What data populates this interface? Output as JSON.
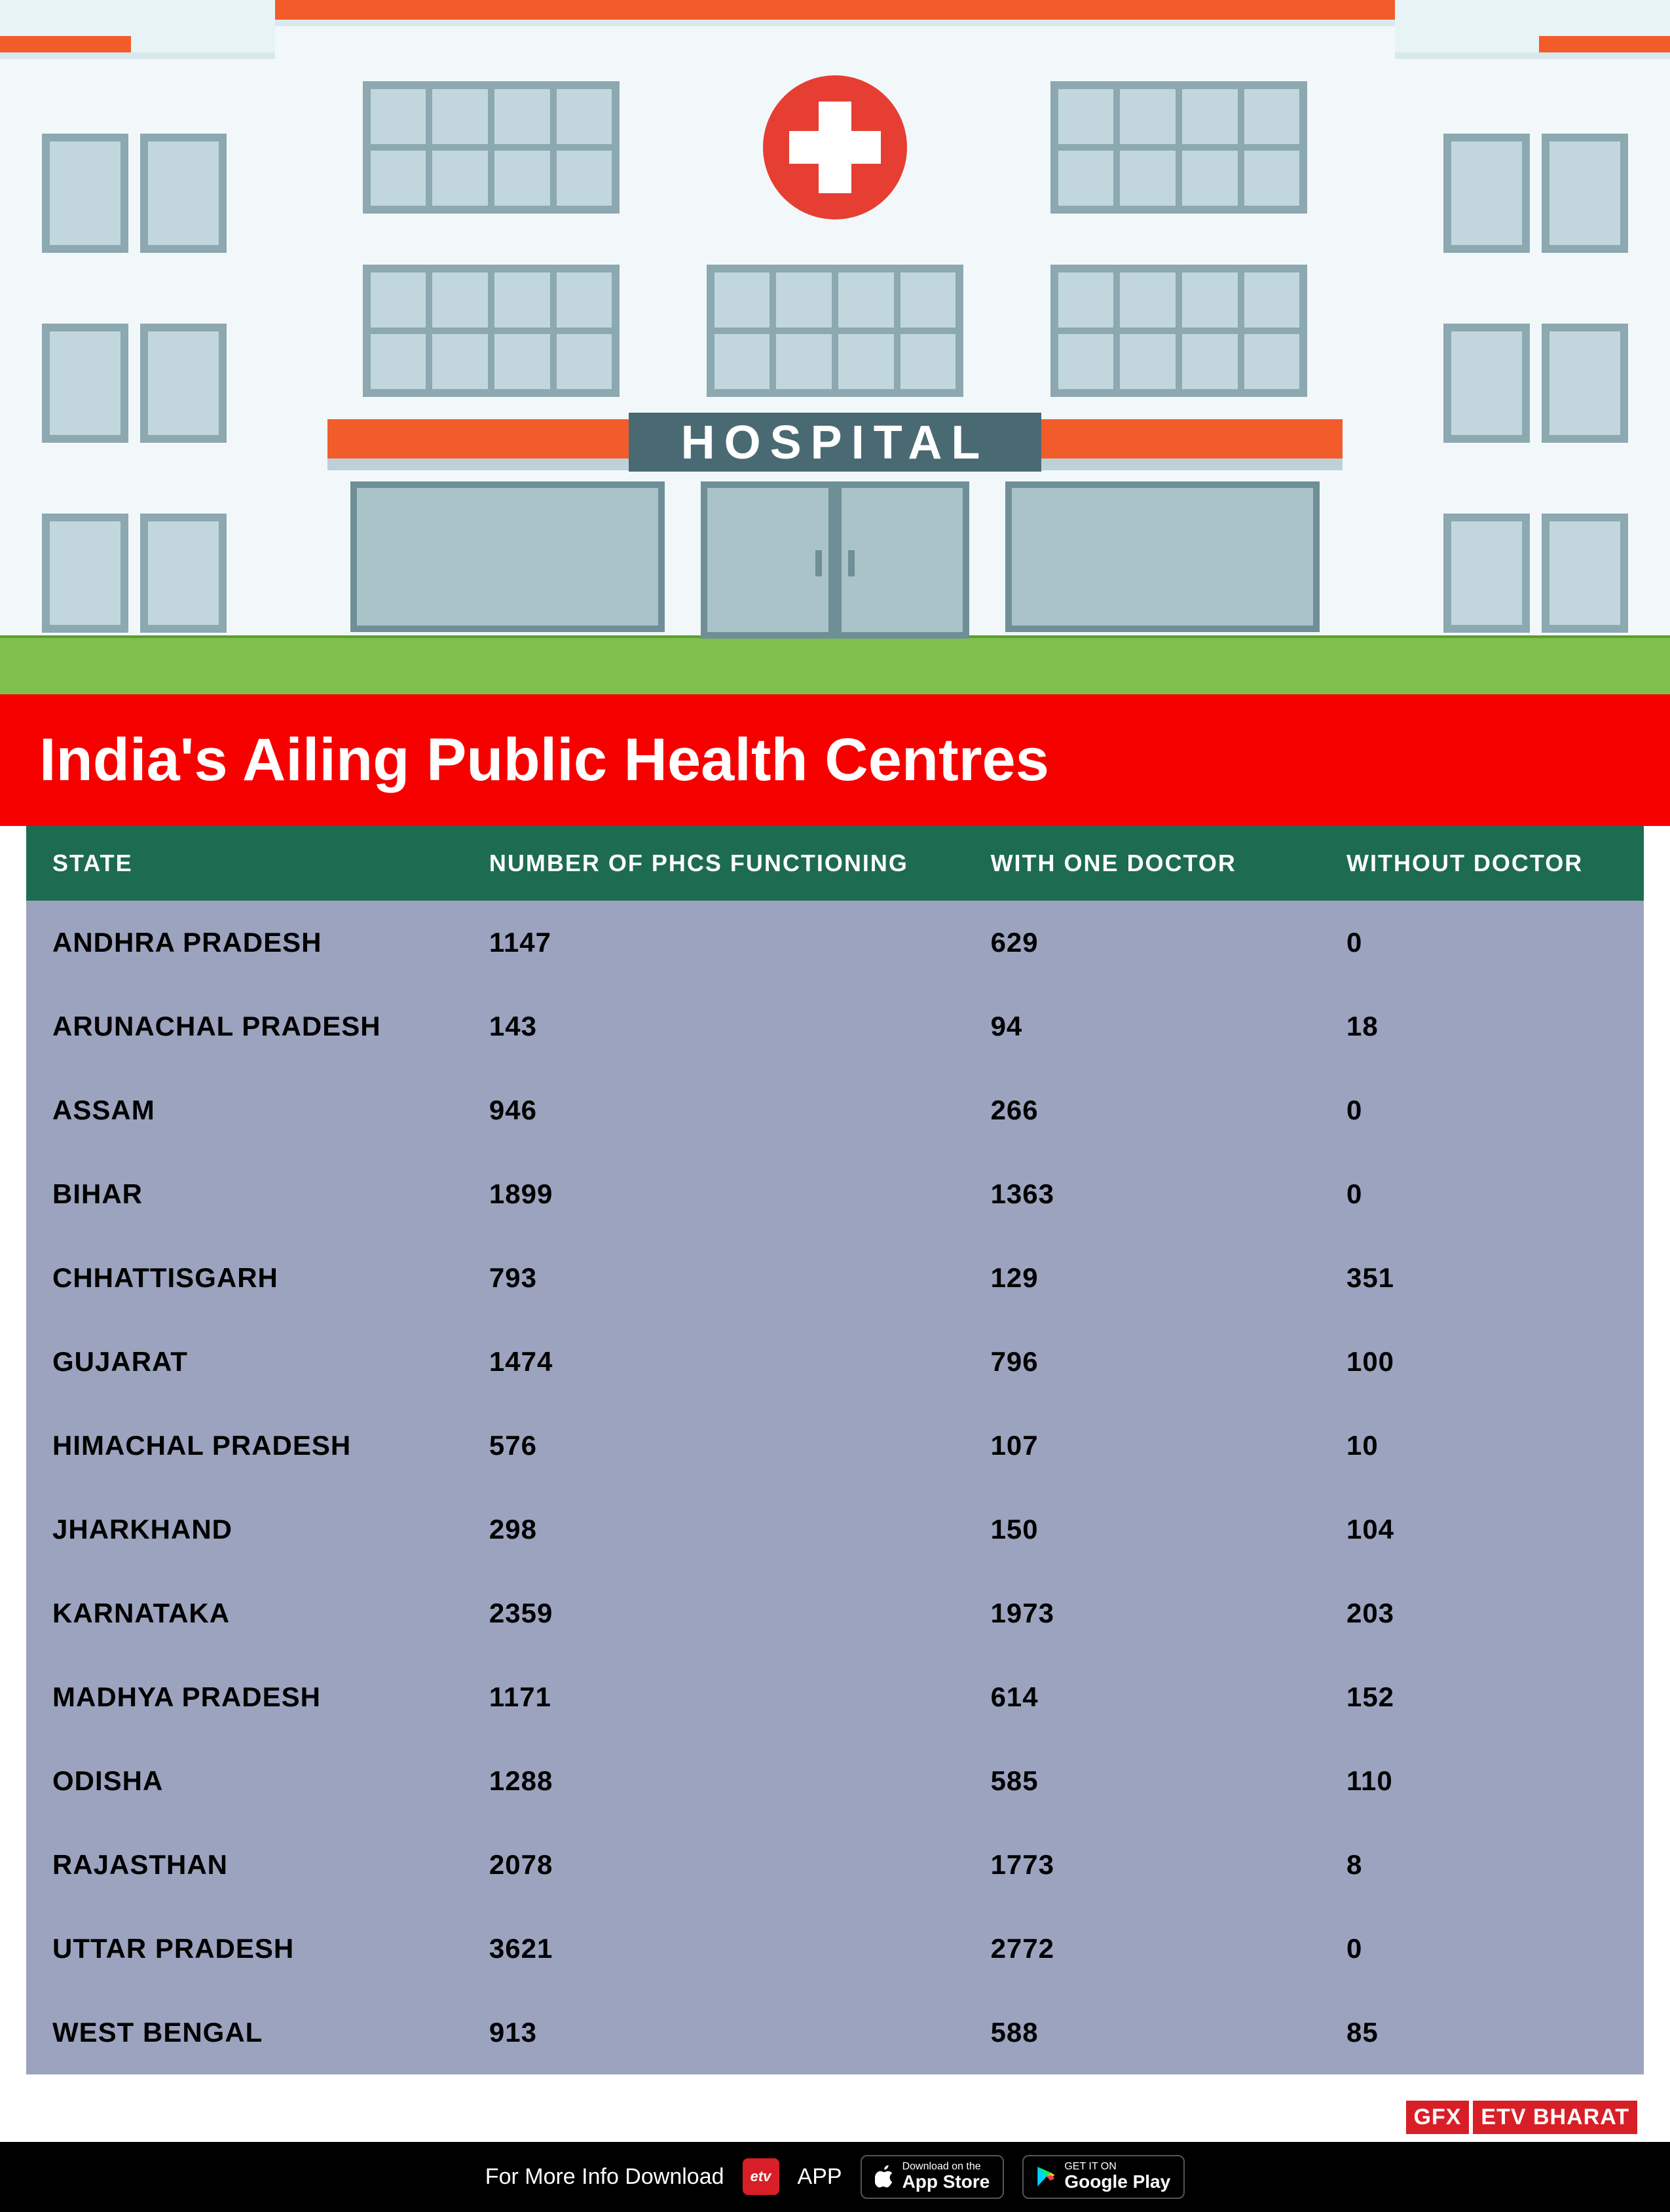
{
  "illustration": {
    "sky_color": "#e8f3f5",
    "building_color": "#f2f8fa",
    "building_shadow": "#d9e8ec",
    "roof_bar_color": "#f25c2b",
    "cross_bg": "#e63e33",
    "cross_color": "#ffffff",
    "window_frame": "#8ca8b0",
    "window_glass": "#c2d7dd",
    "sign_bg": "#4a6a73",
    "sign_text": "HOSPITAL",
    "sign_text_color": "#ffffff",
    "grass_color": "#7fbf4d",
    "grass_dark": "#5a9e2e",
    "side_accent": "#f25c2b",
    "canopy_top": "#bcd2d8",
    "door_glass": "#a9c3c9",
    "door_frame": "#6f8f97"
  },
  "title": "India's Ailing Public Health Centres",
  "title_bg": "#f70000",
  "title_color": "#ffffff",
  "table": {
    "header_bg": "#1d6b50",
    "header_color": "#ffffff",
    "body_bg": "#9ba3be",
    "body_color": "#000000",
    "columns": [
      "STATE",
      "NUMBER OF PHCS FUNCTIONING",
      "WITH ONE DOCTOR",
      "WITHOUT DOCTOR"
    ],
    "rows": [
      [
        "ANDHRA PRADESH",
        "1147",
        "629",
        "0"
      ],
      [
        "ARUNACHAL PRADESH",
        "143",
        "94",
        "18"
      ],
      [
        "ASSAM",
        "946",
        "266",
        "0"
      ],
      [
        "BIHAR",
        "1899",
        "1363",
        "0"
      ],
      [
        "CHHATTISGARH",
        "793",
        "129",
        "351"
      ],
      [
        "GUJARAT",
        "1474",
        "796",
        "100"
      ],
      [
        "HIMACHAL PRADESH",
        "576",
        "107",
        "10"
      ],
      [
        "JHARKHAND",
        "298",
        "150",
        "104"
      ],
      [
        "KARNATAKA",
        "2359",
        "1973",
        "203"
      ],
      [
        "MADHYA PRADESH",
        "1171",
        "614",
        "152"
      ],
      [
        "ODISHA",
        "1288",
        "585",
        "110"
      ],
      [
        "RAJASTHAN",
        "2078",
        "1773",
        "8"
      ],
      [
        "UTTAR PRADESH",
        "3621",
        "2772",
        "0"
      ],
      [
        "WEST BENGAL",
        "913",
        "588",
        "85"
      ]
    ]
  },
  "brand": {
    "gfx": "GFX",
    "etv": "ETV BHARAT"
  },
  "footer": {
    "download_text": "For More Info Download",
    "app_text": "APP",
    "appstore_small": "Download on the",
    "appstore_big": "App Store",
    "play_small": "GET IT ON",
    "play_big": "Google Play"
  }
}
